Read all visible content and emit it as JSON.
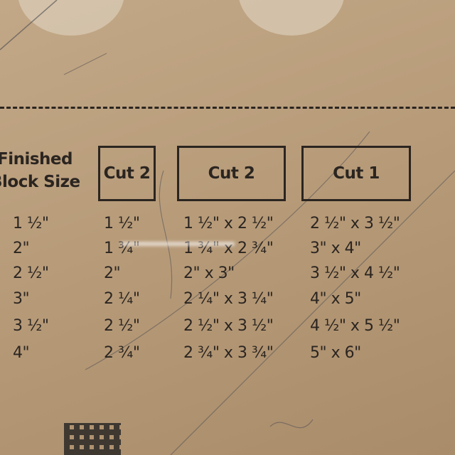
{
  "table": {
    "header": {
      "line1": "Finished",
      "line2": "Block Size"
    },
    "boxes": [
      "Cut 2",
      "Cut 2",
      "Cut 1"
    ],
    "rows": [
      [
        "1 ½\"",
        "1 ½\"",
        "1 ½\" x 2 ½\"",
        "2 ½\" x 3 ½\""
      ],
      [
        "2\"",
        "1 ¾\"",
        "1 ¾\" x 2 ¾\"",
        "3\" x 4\""
      ],
      [
        "2 ½\"",
        "2\"",
        "2\" x 3\"",
        "3 ½\" x 4 ½\""
      ],
      [
        "3\"",
        "2 ¼\"",
        "2 ¼\" x 3 ¼\"",
        "4\" x 5\""
      ],
      [
        "3 ½\"",
        "2 ½\"",
        "2 ½\" x 3 ½\"",
        "4 ½\" x 5 ½\""
      ],
      [
        "4\"",
        "2 ¾\"",
        "2 ¾\" x 3 ¾\"",
        "5\" x 6\""
      ]
    ]
  },
  "colors": {
    "background": "#b89c7a",
    "ink": "#2b2520"
  }
}
